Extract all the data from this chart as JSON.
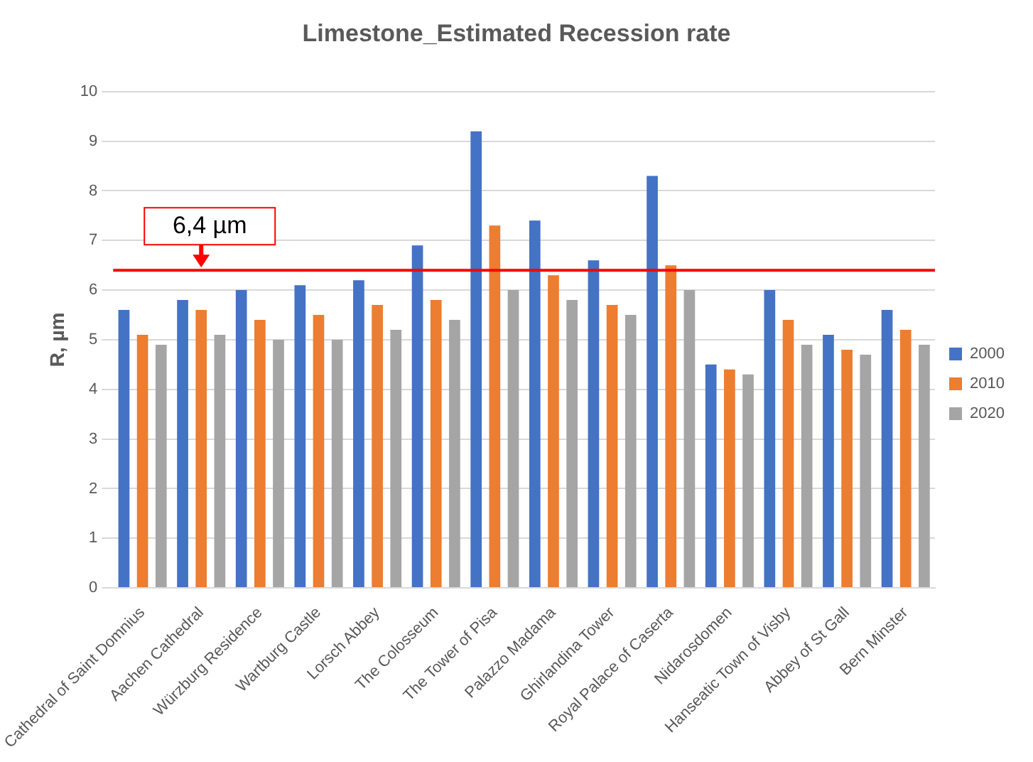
{
  "chart_data": {
    "type": "bar",
    "title": "Limestone_Estimated Recession rate",
    "ylabel": "R, µm",
    "categories": [
      "Cathedral of Saint Domnius",
      "Aachen Cathedral",
      "Würzburg Residence",
      "Wartburg Castle",
      "Lorsch Abbey",
      "The Colosseum",
      "The Tower of Pisa",
      "Palazzo Madama",
      "Ghirlandina Tower",
      "Royal Palace of Caserta",
      "Nidarosdomen",
      "Hanseatic Town of Visby",
      "Abbey of St Gall",
      "Bern Minster"
    ],
    "series": [
      {
        "name": "2000",
        "color": "#4472c4",
        "values": [
          5.6,
          5.8,
          6.0,
          6.1,
          6.2,
          6.9,
          9.2,
          7.4,
          6.6,
          8.3,
          4.5,
          6.0,
          5.1,
          5.6
        ]
      },
      {
        "name": "2010",
        "color": "#ed7d31",
        "values": [
          5.1,
          5.6,
          5.4,
          5.5,
          5.7,
          5.8,
          7.3,
          6.3,
          5.7,
          6.5,
          4.4,
          5.4,
          4.8,
          5.2
        ]
      },
      {
        "name": "2020",
        "color": "#a5a5a5",
        "values": [
          4.9,
          5.1,
          5.0,
          5.0,
          5.2,
          5.4,
          6.0,
          5.8,
          5.5,
          6.0,
          4.3,
          4.9,
          4.7,
          4.9
        ]
      }
    ],
    "ylim": [
      0,
      10
    ],
    "yticks": [
      0,
      1,
      2,
      3,
      4,
      5,
      6,
      7,
      8,
      9,
      10
    ],
    "grid": "y",
    "legend": "right",
    "ref_lines": [
      {
        "axis": "y",
        "value": 6.4,
        "label": "6,4 µm",
        "color": "#ff0000"
      }
    ]
  }
}
